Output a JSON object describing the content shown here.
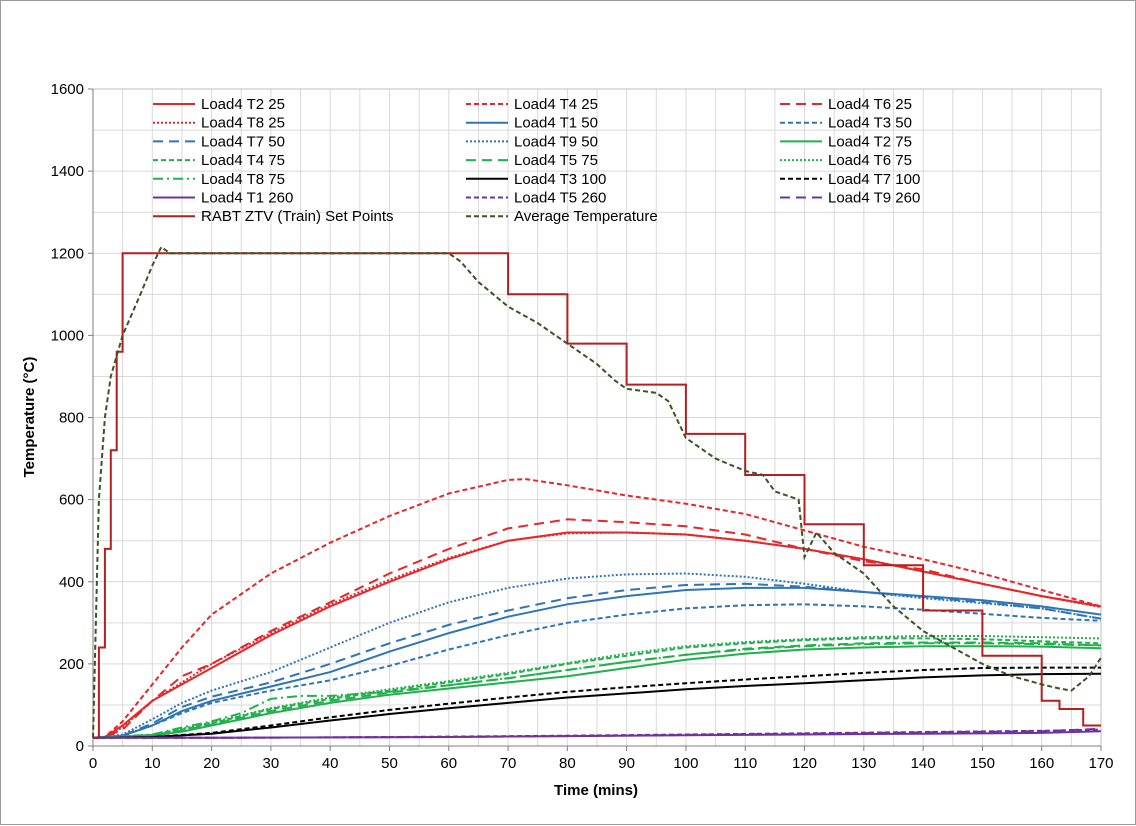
{
  "chart_data": {
    "type": "line",
    "title": "",
    "xlabel": "Time (mins)",
    "ylabel": "Temperature (°C)",
    "xlim": [
      0,
      170
    ],
    "ylim": [
      0,
      1600
    ],
    "xticks": [
      0,
      10,
      20,
      30,
      40,
      50,
      60,
      70,
      80,
      90,
      100,
      110,
      120,
      130,
      140,
      150,
      160,
      170
    ],
    "yticks": [
      0,
      200,
      400,
      600,
      800,
      1000,
      1200,
      1400,
      1600
    ],
    "xtick_labels": [
      "0",
      "10",
      "20",
      "30",
      "40",
      "50",
      "60",
      "70",
      "80",
      "90",
      "100",
      "110",
      "120",
      "130",
      "140",
      "150",
      "160",
      "170"
    ],
    "ytick_labels": [
      "0",
      "200",
      "400",
      "600",
      "800",
      "1000",
      "1200",
      "1400",
      "1600"
    ],
    "grid": true,
    "legend_position": "top",
    "series": [
      {
        "name": "Load4 T2 25",
        "color": "#e8262a",
        "dash": "solid",
        "x": [
          0,
          2,
          5,
          10,
          15,
          20,
          30,
          40,
          50,
          60,
          70,
          80,
          90,
          100,
          110,
          120,
          130,
          140,
          150,
          160,
          170
        ],
        "y": [
          20,
          22,
          50,
          110,
          150,
          190,
          270,
          340,
          400,
          455,
          500,
          520,
          520,
          515,
          500,
          480,
          455,
          425,
          395,
          365,
          340
        ]
      },
      {
        "name": "Load4 T4 25",
        "color": "#e8262a",
        "dash": "shortdash",
        "x": [
          0,
          2,
          5,
          10,
          15,
          20,
          30,
          40,
          50,
          60,
          70,
          73,
          80,
          90,
          100,
          110,
          120,
          130,
          140,
          150,
          160,
          170
        ],
        "y": [
          20,
          22,
          60,
          150,
          240,
          320,
          420,
          495,
          560,
          615,
          648,
          650,
          635,
          610,
          590,
          565,
          525,
          485,
          455,
          420,
          380,
          340
        ]
      },
      {
        "name": "Load4 T6 25",
        "color": "#e8262a",
        "dash": "longdash",
        "x": [
          0,
          2,
          5,
          10,
          15,
          20,
          30,
          40,
          50,
          60,
          70,
          80,
          90,
          100,
          110,
          120,
          130,
          140,
          150,
          160,
          170
        ],
        "y": [
          20,
          22,
          40,
          110,
          170,
          200,
          280,
          350,
          420,
          480,
          530,
          552,
          545,
          535,
          515,
          480,
          450,
          430,
          395,
          365,
          340
        ]
      },
      {
        "name": "Load4 T8 25",
        "color": "#e8262a",
        "dash": "dot",
        "x": [
          0,
          2,
          5,
          10,
          15,
          20,
          30,
          40,
          50,
          60,
          70,
          80,
          90,
          100,
          110,
          120,
          130,
          140,
          150,
          160,
          170
        ],
        "y": [
          20,
          22,
          45,
          110,
          155,
          200,
          275,
          345,
          405,
          458,
          500,
          518,
          520,
          515,
          500,
          480,
          455,
          425,
          395,
          365,
          338
        ]
      },
      {
        "name": "Load4 T1 50",
        "color": "#2e75b6",
        "dash": "solid",
        "x": [
          0,
          5,
          10,
          15,
          20,
          30,
          40,
          50,
          60,
          70,
          80,
          90,
          100,
          110,
          120,
          130,
          140,
          150,
          160,
          170
        ],
        "y": [
          20,
          25,
          50,
          85,
          110,
          145,
          180,
          230,
          275,
          315,
          345,
          365,
          380,
          385,
          385,
          375,
          365,
          355,
          340,
          320
        ]
      },
      {
        "name": "Load4 T3 50",
        "color": "#2e75b6",
        "dash": "shortdash",
        "x": [
          0,
          5,
          10,
          15,
          20,
          30,
          40,
          50,
          60,
          70,
          80,
          90,
          100,
          110,
          120,
          130,
          140,
          150,
          160,
          170
        ],
        "y": [
          20,
          25,
          50,
          80,
          105,
          135,
          160,
          195,
          235,
          270,
          300,
          320,
          335,
          343,
          345,
          340,
          332,
          322,
          312,
          305
        ]
      },
      {
        "name": "Load4 T7 50",
        "color": "#2e75b6",
        "dash": "longdash",
        "x": [
          0,
          5,
          10,
          15,
          20,
          30,
          40,
          50,
          60,
          70,
          80,
          90,
          100,
          110,
          120,
          130,
          140,
          150,
          160,
          170
        ],
        "y": [
          20,
          25,
          55,
          95,
          120,
          155,
          200,
          250,
          295,
          330,
          360,
          380,
          392,
          395,
          388,
          375,
          363,
          350,
          335,
          310
        ]
      },
      {
        "name": "Load4 T9 50",
        "color": "#2e75b6",
        "dash": "dot",
        "x": [
          0,
          5,
          10,
          15,
          20,
          30,
          40,
          50,
          60,
          70,
          80,
          90,
          100,
          110,
          120,
          130,
          140,
          150,
          160,
          170
        ],
        "y": [
          20,
          28,
          65,
          105,
          135,
          180,
          240,
          300,
          350,
          385,
          408,
          418,
          420,
          412,
          395,
          375,
          360,
          348,
          335,
          310
        ]
      },
      {
        "name": "Load4 T2 75",
        "color": "#21b14c",
        "dash": "solid",
        "x": [
          0,
          10,
          15,
          20,
          30,
          40,
          50,
          60,
          70,
          80,
          90,
          100,
          110,
          120,
          130,
          140,
          150,
          160,
          170
        ],
        "y": [
          20,
          25,
          35,
          50,
          80,
          105,
          125,
          140,
          155,
          170,
          190,
          210,
          225,
          235,
          240,
          243,
          243,
          242,
          238
        ]
      },
      {
        "name": "Load4 T4 75",
        "color": "#21b14c",
        "dash": "shortdash",
        "x": [
          0,
          10,
          15,
          20,
          30,
          40,
          50,
          60,
          70,
          80,
          90,
          100,
          110,
          120,
          130,
          140,
          150,
          160,
          170
        ],
        "y": [
          20,
          27,
          40,
          55,
          90,
          115,
          135,
          155,
          175,
          200,
          220,
          240,
          250,
          258,
          262,
          262,
          260,
          255,
          250
        ]
      },
      {
        "name": "Load4 T5 75",
        "color": "#21b14c",
        "dash": "longdash",
        "x": [
          0,
          10,
          15,
          20,
          30,
          40,
          50,
          60,
          70,
          80,
          90,
          100,
          110,
          120,
          130,
          140,
          150,
          160,
          170
        ],
        "y": [
          20,
          26,
          38,
          52,
          85,
          110,
          130,
          148,
          165,
          185,
          205,
          222,
          237,
          245,
          250,
          252,
          252,
          250,
          245
        ]
      },
      {
        "name": "Load4 T6 75",
        "color": "#21b14c",
        "dash": "dot",
        "x": [
          0,
          10,
          15,
          20,
          30,
          40,
          50,
          60,
          70,
          80,
          90,
          100,
          110,
          120,
          130,
          140,
          150,
          160,
          170
        ],
        "y": [
          20,
          27,
          42,
          57,
          92,
          118,
          138,
          158,
          178,
          202,
          225,
          243,
          253,
          260,
          265,
          268,
          268,
          265,
          262
        ]
      },
      {
        "name": "Load4 T8 75",
        "color": "#21b14c",
        "dash": "dashdot",
        "x": [
          0,
          10,
          15,
          20,
          25,
          30,
          35,
          40,
          50,
          60,
          70,
          80,
          90,
          100,
          110,
          120,
          130,
          140,
          150,
          160,
          170
        ],
        "y": [
          20,
          28,
          45,
          60,
          80,
          115,
          122,
          122,
          132,
          148,
          165,
          185,
          205,
          222,
          235,
          243,
          248,
          250,
          250,
          248,
          245
        ]
      },
      {
        "name": "Load4 T3 100",
        "color": "#000000",
        "dash": "solid",
        "x": [
          0,
          10,
          20,
          30,
          40,
          50,
          60,
          70,
          80,
          90,
          100,
          110,
          120,
          130,
          140,
          150,
          160,
          170
        ],
        "y": [
          20,
          22,
          30,
          45,
          62,
          78,
          92,
          105,
          118,
          128,
          138,
          146,
          153,
          160,
          167,
          172,
          175,
          176
        ]
      },
      {
        "name": "Load4 T7 100",
        "color": "#000000",
        "dash": "shortdash",
        "x": [
          0,
          10,
          20,
          30,
          40,
          50,
          60,
          70,
          80,
          90,
          100,
          110,
          120,
          130,
          140,
          150,
          160,
          170
        ],
        "y": [
          20,
          22,
          32,
          50,
          70,
          88,
          103,
          118,
          132,
          143,
          153,
          162,
          170,
          178,
          185,
          190,
          191,
          191
        ]
      },
      {
        "name": "Load4 T1 260",
        "color": "#7030a0",
        "dash": "solid",
        "x": [
          0,
          20,
          40,
          60,
          80,
          100,
          120,
          140,
          160,
          170
        ],
        "y": [
          20,
          20,
          21,
          22,
          24,
          26,
          28,
          30,
          32,
          36
        ]
      },
      {
        "name": "Load4 T5 260",
        "color": "#7030a0",
        "dash": "shortdash",
        "x": [
          0,
          20,
          40,
          60,
          80,
          100,
          120,
          140,
          160,
          170
        ],
        "y": [
          20,
          20,
          21,
          23,
          25,
          28,
          31,
          34,
          37,
          40
        ]
      },
      {
        "name": "Load4 T9 260",
        "color": "#7030a0",
        "dash": "longdash",
        "x": [
          0,
          20,
          40,
          60,
          80,
          100,
          120,
          140,
          160,
          170
        ],
        "y": [
          20,
          20,
          21,
          22,
          24,
          27,
          30,
          33,
          36,
          42
        ]
      },
      {
        "name": "RABT ZTV (Train) Set Points",
        "color": "#b41f1f",
        "dash": "solid",
        "step": true,
        "x": [
          0,
          1,
          2,
          3,
          4,
          5,
          60,
          70,
          80,
          90,
          100,
          110,
          120,
          130,
          140,
          150,
          160,
          163,
          167,
          170
        ],
        "y": [
          20,
          240,
          480,
          720,
          960,
          1200,
          1200,
          1100,
          980,
          880,
          760,
          660,
          540,
          440,
          330,
          220,
          110,
          90,
          50,
          50
        ]
      },
      {
        "name": "Average Temperature",
        "color": "#375623",
        "dash": "shortdash",
        "x": [
          0,
          1,
          2,
          3,
          5,
          8,
          10,
          11.5,
          13,
          15,
          20,
          30,
          40,
          50,
          60,
          62,
          65,
          70,
          75,
          80,
          85,
          88,
          90,
          95,
          97,
          100,
          105,
          110,
          113,
          115,
          119,
          120,
          122,
          125,
          130,
          135,
          140,
          145,
          150,
          155,
          160,
          163,
          165,
          168,
          170
        ],
        "y": [
          20,
          600,
          800,
          900,
          1000,
          1100,
          1170,
          1215,
          1200,
          1200,
          1200,
          1200,
          1200,
          1200,
          1200,
          1180,
          1130,
          1070,
          1030,
          980,
          930,
          890,
          870,
          860,
          840,
          750,
          700,
          670,
          660,
          620,
          600,
          460,
          520,
          470,
          420,
          340,
          280,
          240,
          200,
          170,
          150,
          140,
          135,
          170,
          215
        ]
      }
    ]
  }
}
